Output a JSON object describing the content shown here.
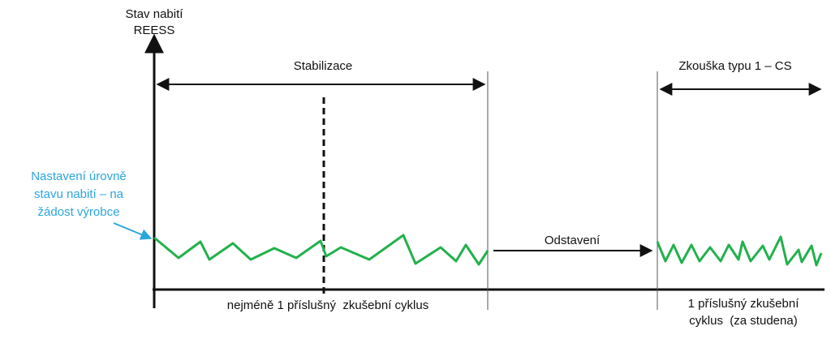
{
  "axis_label": [
    "Stav nabití",
    "REESS"
  ],
  "annotation": [
    "Nastavení úrovně",
    "stavu nabití – na",
    "žádost výrobce"
  ],
  "phases": {
    "stabilization": "Stabilizace",
    "soak": "Odstavení",
    "test": "Zkouška typu 1 – CS"
  },
  "bottom_labels": {
    "stabilization": [
      "nejméně 1 příslušný  zkušební cyklus"
    ],
    "test": [
      "1 příslušný zkušební",
      "cyklus  (za studena)"
    ]
  }
}
